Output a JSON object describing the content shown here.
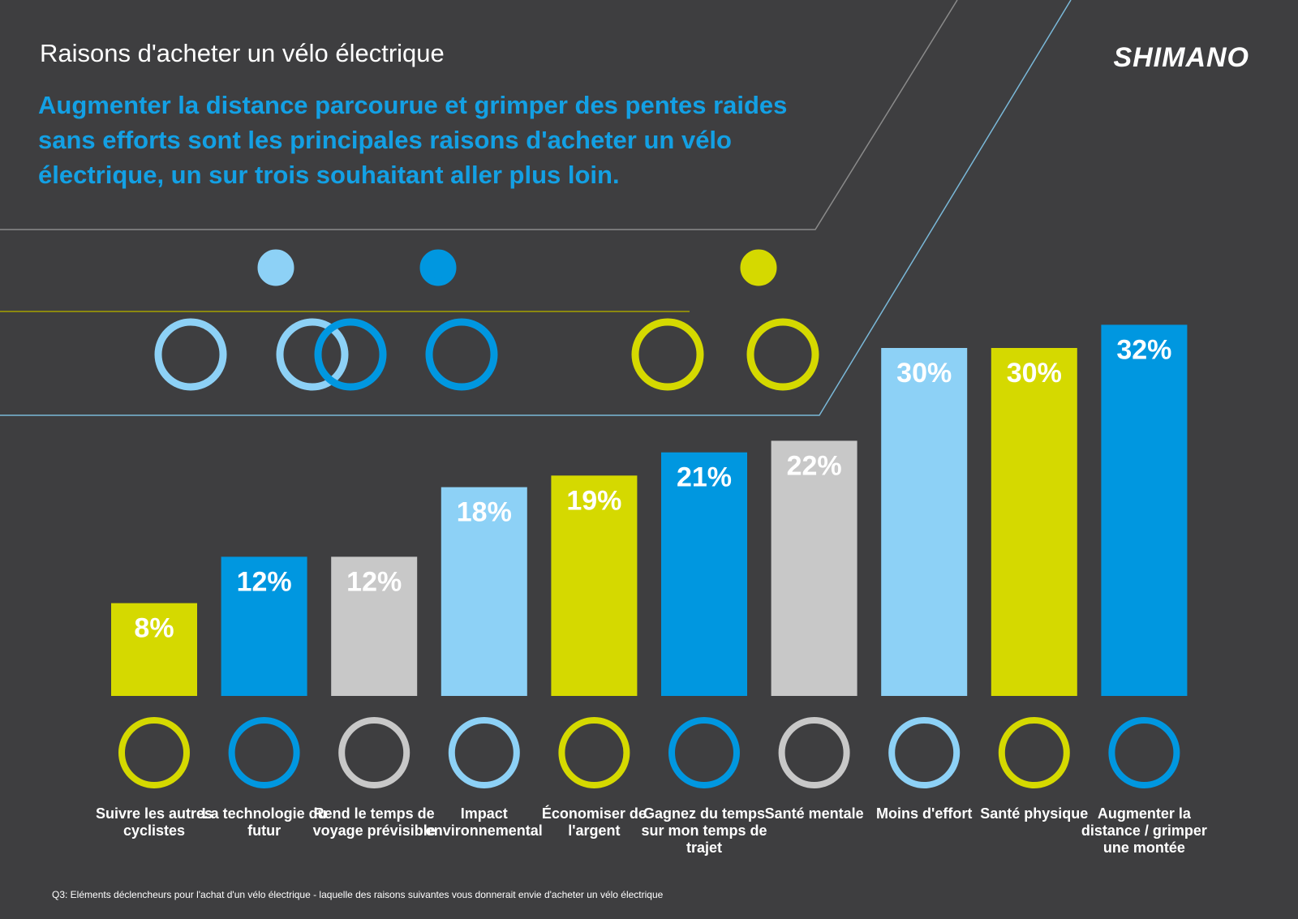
{
  "chart_data": {
    "type": "bar",
    "title": "Raisons d'acheter un vélo électrique",
    "subtitle": "Augmenter la distance parcourue et grimper des pentes raides sans efforts sont les principales raisons d'acheter un vélo électrique, un sur trois souhaitant aller plus loin.",
    "brand": "SHIMANO",
    "footnote": "Q3: Eléments déclencheurs pour l'achat d'un vélo électrique - laquelle des raisons suivantes vous donnerait envie d'acheter un vélo électrique",
    "categories": [
      "Suivre les autres cyclistes",
      "La technologie du futur",
      "Rend le temps de voyage prévisible",
      "Impact environnemental",
      "Économiser de l'argent",
      "Gagnez du temps sur mon temps de trajet",
      "Santé mentale",
      "Moins d'effort",
      "Santé physique",
      "Augmenter la distance / grimper une montée"
    ],
    "values": [
      8,
      12,
      12,
      18,
      19,
      21,
      22,
      30,
      30,
      32
    ],
    "value_labels": [
      "8%",
      "12%",
      "12%",
      "18%",
      "19%",
      "21%",
      "22%",
      "30%",
      "30%",
      "32%"
    ],
    "colors": [
      "#d5d900",
      "#0097e0",
      "#c8c8c8",
      "#8dd1f6",
      "#d5d900",
      "#0097e0",
      "#c8c8c8",
      "#8dd1f6",
      "#d5d900",
      "#0097e0"
    ]
  }
}
